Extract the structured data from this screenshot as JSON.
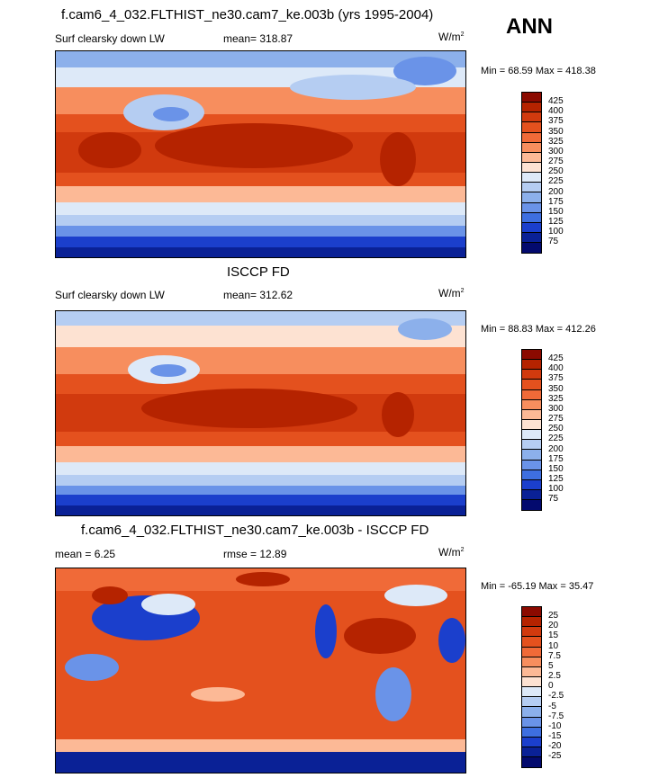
{
  "season": "ANN",
  "panel1": {
    "title": "f.cam6_4_032.FLTHIST_ne30.cam7_ke.003b (yrs 1995-2004)",
    "variable": "Surf clearsky down LW",
    "mean": "mean= 318.87",
    "units_base": "W/m",
    "units_exp": "2",
    "minmax": "Min =  68.59 Max = 418.38"
  },
  "panel2": {
    "title": "ISCCP FD",
    "variable": "Surf clearsky down LW",
    "mean": "mean= 312.62",
    "units_base": "W/m",
    "units_exp": "2",
    "minmax": "Min =  88.83 Max = 412.26"
  },
  "panel3": {
    "title": "f.cam6_4_032.FLTHIST_ne30.cam7_ke.003b - ISCCP FD",
    "mean": "mean =   6.25",
    "rmse": "rmse =  12.89",
    "units_base": "W/m",
    "units_exp": "2",
    "minmax": "Min = -65.19 Max =  35.47"
  },
  "colorbar_abs": {
    "levels": [
      "425",
      "400",
      "375",
      "350",
      "325",
      "300",
      "275",
      "250",
      "225",
      "200",
      "175",
      "150",
      "125",
      "100",
      "75"
    ],
    "colors": [
      "#8b0a00",
      "#b52300",
      "#d13a0e",
      "#e4511e",
      "#f06a38",
      "#f78e5e",
      "#fcb996",
      "#fde2d2",
      "#dde9f8",
      "#b5cdf2",
      "#8cb0eb",
      "#6a93e8",
      "#3e6fe0",
      "#1b3fcc",
      "#0a2196",
      "#030a6e"
    ]
  },
  "colorbar_diff": {
    "levels": [
      "25",
      "20",
      "15",
      "10",
      "7.5",
      "5",
      "2.5",
      "0",
      "-2.5",
      "-5",
      "-7.5",
      "-10",
      "-15",
      "-20",
      "-25"
    ],
    "colors": [
      "#8b0a00",
      "#b52300",
      "#d13a0e",
      "#e4511e",
      "#f06a38",
      "#f78e5e",
      "#fcb996",
      "#fde2d2",
      "#dde9f8",
      "#b5cdf2",
      "#8cb0eb",
      "#6a93e8",
      "#3e6fe0",
      "#1b3fcc",
      "#0a2196",
      "#030a6e"
    ]
  }
}
